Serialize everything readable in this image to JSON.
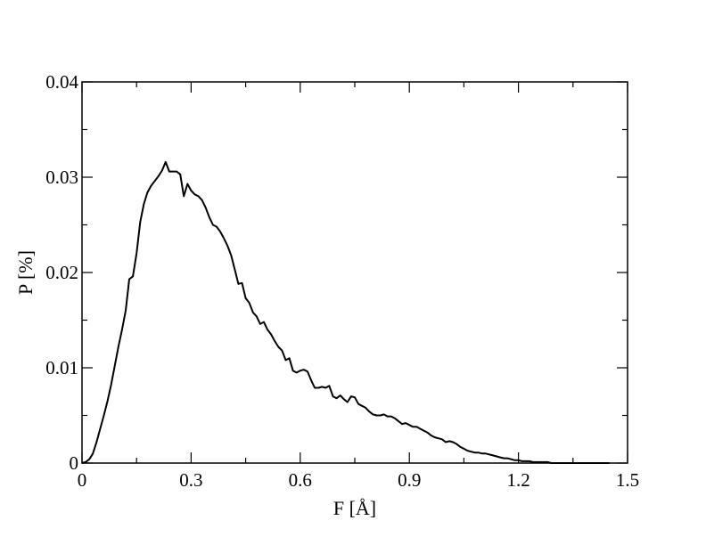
{
  "chart_data": {
    "type": "line",
    "title": "",
    "xlabel": "F [Å]",
    "ylabel": "P [%]",
    "xlim": [
      0,
      1.5
    ],
    "ylim": [
      0,
      0.04
    ],
    "grid": false,
    "x_ticks": [
      0,
      0.3,
      0.6,
      0.9,
      1.2,
      1.5
    ],
    "x_tick_labels": [
      "0",
      "0.3",
      "0.6",
      "0.9",
      "1.2",
      "1.5"
    ],
    "y_ticks": [
      0,
      0.01,
      0.02,
      0.03,
      0.04
    ],
    "y_tick_labels": [
      "0",
      "0.01",
      "0.02",
      "0.03",
      "0.04"
    ],
    "series": [
      {
        "color": "#000000",
        "x": [
          0,
          0.01,
          0.02,
          0.03,
          0.04,
          0.05,
          0.06,
          0.07,
          0.08,
          0.09,
          0.1,
          0.11,
          0.12,
          0.13,
          0.14,
          0.15,
          0.16,
          0.17,
          0.18,
          0.19,
          0.2,
          0.21,
          0.22,
          0.23,
          0.24,
          0.25,
          0.26,
          0.27,
          0.28,
          0.29,
          0.3,
          0.31,
          0.32,
          0.33,
          0.34,
          0.35,
          0.36,
          0.37,
          0.38,
          0.39,
          0.4,
          0.41,
          0.42,
          0.43,
          0.44,
          0.45,
          0.46,
          0.47,
          0.48,
          0.49,
          0.5,
          0.51,
          0.52,
          0.53,
          0.54,
          0.55,
          0.56,
          0.57,
          0.58,
          0.59,
          0.6,
          0.61,
          0.62,
          0.63,
          0.64,
          0.65,
          0.66,
          0.67,
          0.68,
          0.69,
          0.7,
          0.71,
          0.72,
          0.73,
          0.74,
          0.75,
          0.76,
          0.77,
          0.78,
          0.79,
          0.8,
          0.81,
          0.82,
          0.83,
          0.84,
          0.85,
          0.86,
          0.87,
          0.88,
          0.89,
          0.9,
          0.91,
          0.92,
          0.93,
          0.94,
          0.95,
          0.96,
          0.97,
          0.98,
          0.99,
          1.0,
          1.01,
          1.02,
          1.03,
          1.04,
          1.05,
          1.06,
          1.07,
          1.08,
          1.09,
          1.1,
          1.11,
          1.12,
          1.13,
          1.14,
          1.15,
          1.16,
          1.17,
          1.18,
          1.19,
          1.2,
          1.21,
          1.22,
          1.23,
          1.24,
          1.25,
          1.26,
          1.27,
          1.28,
          1.29,
          1.3,
          1.31,
          1.32,
          1.33,
          1.34,
          1.35,
          1.36,
          1.37,
          1.38,
          1.39,
          1.4,
          1.41,
          1.42,
          1.43,
          1.44,
          1.45
        ],
        "y": [
          0,
          0.0001,
          0.0004,
          0.001,
          0.0022,
          0.0036,
          0.005,
          0.0065,
          0.0082,
          0.0102,
          0.0122,
          0.014,
          0.016,
          0.0193,
          0.0196,
          0.022,
          0.0253,
          0.0272,
          0.0284,
          0.0291,
          0.0296,
          0.0301,
          0.0307,
          0.0316,
          0.0306,
          0.0306,
          0.0306,
          0.0303,
          0.028,
          0.0293,
          0.0286,
          0.0282,
          0.028,
          0.0276,
          0.0268,
          0.0258,
          0.025,
          0.0248,
          0.0243,
          0.0236,
          0.0228,
          0.0218,
          0.0203,
          0.0188,
          0.0189,
          0.0173,
          0.0168,
          0.0158,
          0.0154,
          0.0146,
          0.0148,
          0.014,
          0.0135,
          0.0128,
          0.0122,
          0.0118,
          0.0108,
          0.011,
          0.0097,
          0.0095,
          0.0097,
          0.0098,
          0.0096,
          0.0087,
          0.0079,
          0.0079,
          0.008,
          0.0079,
          0.0081,
          0.007,
          0.0068,
          0.0071,
          0.0067,
          0.0064,
          0.007,
          0.0069,
          0.0062,
          0.006,
          0.0058,
          0.0054,
          0.0051,
          0.005,
          0.005,
          0.0051,
          0.0049,
          0.0049,
          0.0047,
          0.0044,
          0.0041,
          0.0042,
          0.004,
          0.0038,
          0.0038,
          0.0036,
          0.0034,
          0.0032,
          0.0029,
          0.0027,
          0.0026,
          0.0025,
          0.0022,
          0.0023,
          0.0022,
          0.002,
          0.0017,
          0.0015,
          0.0013,
          0.0012,
          0.0011,
          0.0011,
          0.001,
          0.001,
          0.0009,
          0.0008,
          0.0007,
          0.0006,
          0.0005,
          0.0005,
          0.0004,
          0.0003,
          0.0003,
          0.0002,
          0.0002,
          0.0002,
          0.0001,
          0.0001,
          0.0001,
          0.0001,
          0.0001,
          0.0,
          0.0,
          0.0,
          0.0,
          0.0,
          0.0,
          0.0,
          0.0,
          0.0,
          0.0,
          0.0,
          0.0,
          0.0,
          0.0,
          0.0,
          0.0,
          0.0
        ]
      }
    ]
  }
}
